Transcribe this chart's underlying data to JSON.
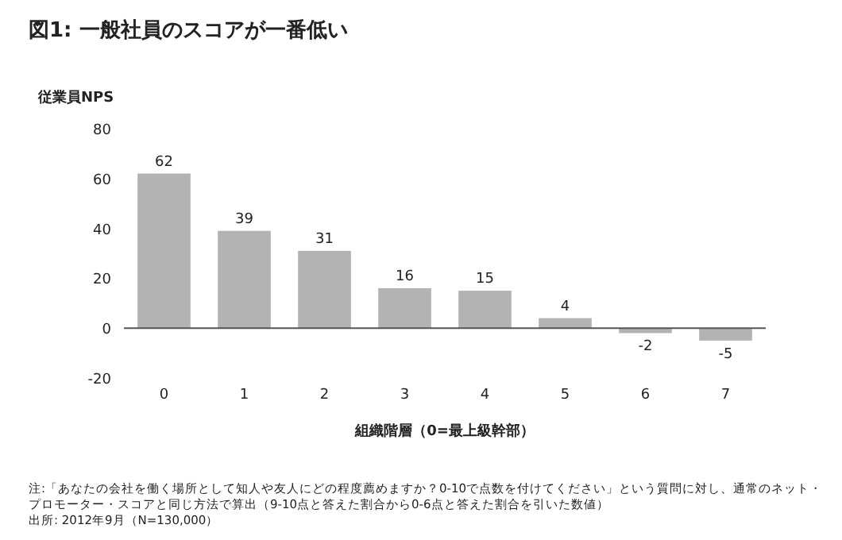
{
  "chart_data": {
    "type": "bar",
    "title": "図1: 一般社員のスコアが一番低い",
    "ylabel": "従業員NPS",
    "xlabel": "組織階層（0=最上級幹部）",
    "categories": [
      "0",
      "1",
      "2",
      "3",
      "4",
      "5",
      "6",
      "7"
    ],
    "values": [
      62,
      39,
      31,
      16,
      15,
      4,
      -2,
      -5
    ],
    "color": "#b3b3b3",
    "ylim": [
      -20,
      80
    ],
    "yticks": [
      -20,
      0,
      20,
      40,
      60,
      80
    ],
    "data_labels": true,
    "annotations": [
      "注:「あなたの会社を働く場所として知人や友人にどの程度薦めますか？0-10で点数を付けてください」という質問に対し、通常のネット・プロモーター・スコアと同じ方法で算出（9-10点と答えた割合から0-6点と答えた割合を引いた数値）",
      "出所: 2012年9月（N=130,000）"
    ]
  }
}
